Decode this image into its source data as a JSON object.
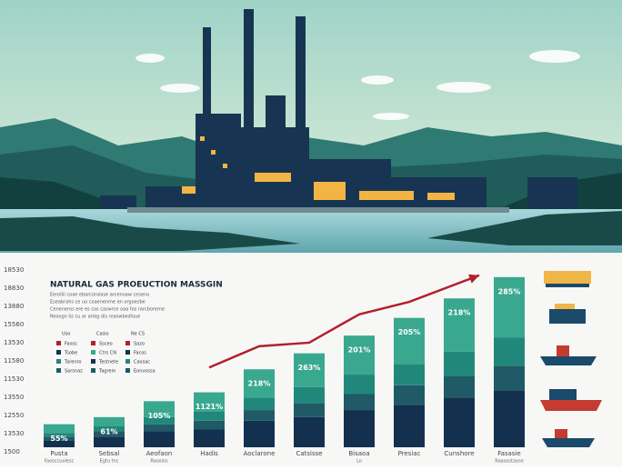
{
  "chart_data": {
    "type": "bar",
    "title": "NATURAL GAS PROEUCTION MASSGIN",
    "subtitle_lines": [
      "Eeroliil coae ebarcoroiase arcenoaw ceseno",
      "Eseabrahs ce uo coaenenme en orgoesbe",
      "Ceneneros ere es cos caswrce oaa fos rarcboreme",
      "Reoogn liz cu ar arieg dis rosowbesfoue"
    ],
    "y_axis_labels": [
      "18530",
      "18830",
      "13880",
      "15560",
      "13530",
      "11580",
      "11530",
      "13550",
      "12550",
      "13530",
      "1500"
    ],
    "categories": [
      "Pusta",
      "Sebsal",
      "Aeofaon",
      "Hadis",
      "Aoclarone",
      "Catsisse",
      "Bisaoa",
      "Presiac",
      "Cunshore",
      "Fasasie"
    ],
    "category_sublabels": [
      "Faosccuolesc",
      "Egtu tnc",
      "Raoslos",
      null,
      null,
      null,
      "Lo",
      null,
      null,
      "Raasostaase"
    ],
    "bar_labels": [
      "55%",
      "61%",
      "105%",
      "1121%",
      "218%",
      "263%",
      "201%",
      "205%",
      "218%",
      "285%"
    ],
    "ylim": [
      0,
      100
    ],
    "series": [
      {
        "color": "#14304f",
        "values": [
          4,
          6,
          9,
          10,
          15,
          17,
          21,
          24,
          28,
          32
        ]
      },
      {
        "color": "#1f5a66",
        "values": [
          2,
          3,
          4,
          5,
          6,
          8,
          9,
          11,
          12,
          14
        ]
      },
      {
        "color": "#22877b",
        "values": [
          2,
          3,
          4,
          5,
          7,
          9,
          11,
          12,
          14,
          16
        ]
      },
      {
        "color": "#3aa88f",
        "values": [
          5,
          5,
          9,
          11,
          16,
          19,
          22,
          26,
          30,
          34
        ]
      }
    ],
    "trend": {
      "color": "#b3202a",
      "x": [
        3,
        4,
        5,
        6,
        7,
        8.4
      ],
      "values": [
        45,
        57,
        59,
        75,
        82,
        97
      ]
    },
    "legend": [
      {
        "header": "Uso",
        "items": [
          {
            "label": "Faoss",
            "color": "#b3202a"
          },
          {
            "label": "Tsobe",
            "color": "#14304f"
          },
          {
            "label": "Tarenro",
            "color": "#22877b"
          },
          {
            "label": "Sarsnaz",
            "color": "#1f5a66"
          }
        ]
      },
      {
        "header": "Casio",
        "items": [
          {
            "label": "Ssceo",
            "color": "#b3202a"
          },
          {
            "label": "Ctrs CN",
            "color": "#3aa88f"
          },
          {
            "label": "Testnete",
            "color": "#14304f"
          },
          {
            "label": "Tagrem",
            "color": "#1f5a66"
          }
        ]
      },
      {
        "header": "Ne CS",
        "items": [
          {
            "label": "Sazo",
            "color": "#b3202a"
          },
          {
            "label": "Facos",
            "color": "#14304f"
          },
          {
            "label": "Caosac",
            "color": "#22877b"
          },
          {
            "label": "Eonvossa",
            "color": "#1f5a66"
          }
        ]
      }
    ]
  }
}
